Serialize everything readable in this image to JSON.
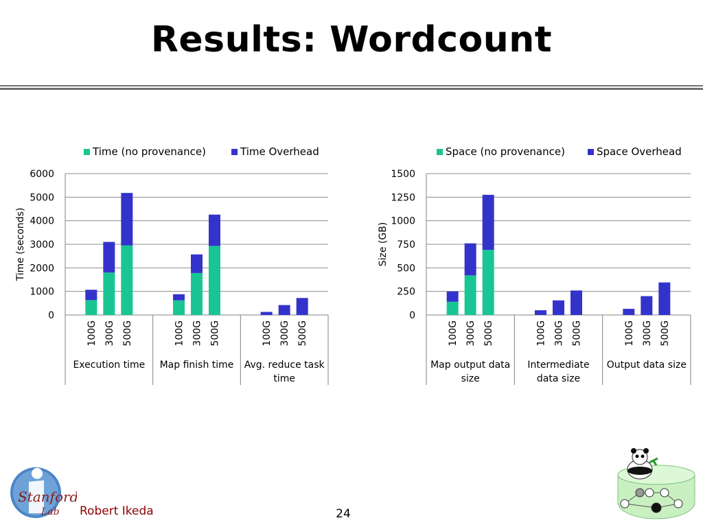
{
  "slide": {
    "title": "Results: Wordcount",
    "author": "Robert Ikeda",
    "page_number": "24",
    "logo_text": "Stanford Lab"
  },
  "colors": {
    "base": "#19c693",
    "overhead": "#3333cc",
    "grid": "#8c8c8c",
    "author": "#8b0000",
    "rule": "#707070"
  },
  "chart_data": [
    {
      "type": "bar",
      "stacked": true,
      "title": "",
      "xlabel": "",
      "ylabel": "Time (seconds)",
      "ylim": [
        0,
        6000
      ],
      "yticks": [
        0,
        1000,
        2000,
        3000,
        4000,
        5000,
        6000
      ],
      "legend_position": "top",
      "groups": [
        "Execution time",
        "Map finish time",
        "Avg. reduce task time"
      ],
      "group_label_lines": [
        [
          "Execution time"
        ],
        [
          "Map finish time"
        ],
        [
          "Avg. reduce task",
          "time"
        ]
      ],
      "categories": [
        "100G",
        "300G",
        "500G"
      ],
      "series": [
        {
          "name": "Time (no provenance)",
          "color": "#19c693",
          "values": [
            [
              630,
              1800,
              2950
            ],
            [
              620,
              1780,
              2930
            ],
            [
              0,
              0,
              0
            ]
          ]
        },
        {
          "name": "Time Overhead",
          "color": "#3333cc",
          "values": [
            [
              440,
              1300,
              2230
            ],
            [
              260,
              790,
              1330
            ],
            [
              130,
              420,
              720
            ]
          ]
        }
      ]
    },
    {
      "type": "bar",
      "stacked": true,
      "title": "",
      "xlabel": "",
      "ylabel": "Size (GB)",
      "ylim": [
        0,
        1500
      ],
      "yticks": [
        0,
        250,
        500,
        750,
        1000,
        1250,
        1500
      ],
      "legend_position": "top",
      "groups": [
        "Map output data size",
        "Intermediate data size",
        "Output data size"
      ],
      "group_label_lines": [
        [
          "Map output data",
          "size"
        ],
        [
          "Intermediate",
          "data size"
        ],
        [
          "Output data size"
        ]
      ],
      "categories": [
        "100G",
        "300G",
        "500G"
      ],
      "series": [
        {
          "name": "Space (no provenance)",
          "color": "#19c693",
          "values": [
            [
              140,
              420,
              690
            ],
            [
              0,
              0,
              0
            ],
            [
              0,
              0,
              0
            ]
          ]
        },
        {
          "name": "Space Overhead",
          "color": "#3333cc",
          "values": [
            [
              110,
              340,
              585
            ],
            [
              50,
              155,
              260
            ],
            [
              65,
              200,
              345
            ]
          ]
        }
      ]
    }
  ]
}
